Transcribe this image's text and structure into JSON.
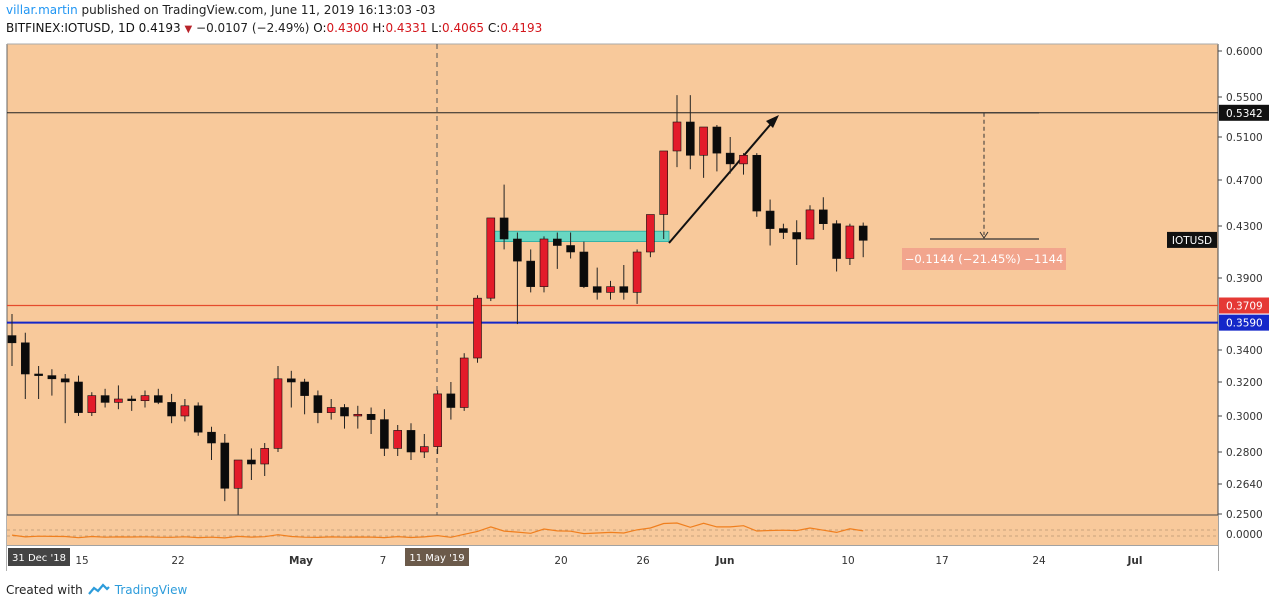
{
  "header": {
    "author": "villar.martin",
    "published_text": " published on TradingView.com, June 11, 2019 16:13:03 -03",
    "symbol": "BITFINEX:IOTUSD, 1D",
    "last": "0.4193",
    "change": "−0.0107 (−2.49%)",
    "o_label": "O:",
    "o": "0.4300",
    "h_label": "H:",
    "h": "0.4331",
    "l_label": "L:",
    "l": "0.4065",
    "c_label": "C:",
    "c": "0.4193"
  },
  "footer": {
    "created_with": "Created with",
    "brand": "TradingView"
  },
  "colors": {
    "background": "#f8c99b",
    "bull": "#e31b2a",
    "bear": "#0b0b0b",
    "support_red": "#e54b2c",
    "support_blue": "#1427c9",
    "zone": "#4fd9c9",
    "measure": "#f2a58d",
    "oscillator": "#f07f1e"
  },
  "chart_data": {
    "type": "candlestick",
    "symbol_tag": "IOTUSD",
    "y_ticks": [
      "0.6000",
      "0.5500",
      "0.5100",
      "0.4700",
      "0.4300",
      "0.3900",
      "0.3400",
      "0.3200",
      "0.3000",
      "0.2800",
      "0.2640",
      "0.2500"
    ],
    "x_ticks": [
      "15",
      "22",
      "May",
      "7",
      "20",
      "26",
      "Jun",
      "10",
      "17",
      "24",
      "Jul"
    ],
    "start_label": "31 Dec '18",
    "cursor_label": "11 May '19",
    "price_tags": {
      "top_line": "0.5342",
      "red_line": "0.3709",
      "blue_line": "0.3590"
    },
    "levels": {
      "top_line": 0.5342,
      "red_line": 0.3709,
      "blue_line": 0.359
    },
    "measure_label": "−0.1144 (−21.45%) −1144",
    "measure_from": 0.5342,
    "measure_to": 0.42,
    "zone": {
      "top": 0.426,
      "bottom": 0.418
    },
    "oscillator_tick": "0.0000",
    "candles": [
      [
        0.35,
        0.365,
        0.33,
        0.345
      ],
      [
        0.345,
        0.352,
        0.31,
        0.325
      ],
      [
        0.325,
        0.33,
        0.31,
        0.324
      ],
      [
        0.324,
        0.328,
        0.312,
        0.322
      ],
      [
        0.322,
        0.325,
        0.296,
        0.32
      ],
      [
        0.32,
        0.324,
        0.3,
        0.302
      ],
      [
        0.302,
        0.314,
        0.3,
        0.312
      ],
      [
        0.312,
        0.316,
        0.305,
        0.308
      ],
      [
        0.308,
        0.318,
        0.304,
        0.31
      ],
      [
        0.31,
        0.312,
        0.303,
        0.309
      ],
      [
        0.309,
        0.315,
        0.305,
        0.312
      ],
      [
        0.312,
        0.316,
        0.307,
        0.308
      ],
      [
        0.308,
        0.313,
        0.296,
        0.3
      ],
      [
        0.3,
        0.31,
        0.297,
        0.306
      ],
      [
        0.306,
        0.308,
        0.289,
        0.291
      ],
      [
        0.291,
        0.294,
        0.276,
        0.285
      ],
      [
        0.285,
        0.29,
        0.256,
        0.262
      ],
      [
        0.262,
        0.276,
        0.248,
        0.276
      ],
      [
        0.276,
        0.282,
        0.266,
        0.274
      ],
      [
        0.274,
        0.285,
        0.268,
        0.282
      ],
      [
        0.282,
        0.33,
        0.28,
        0.322
      ],
      [
        0.322,
        0.327,
        0.305,
        0.32
      ],
      [
        0.32,
        0.322,
        0.301,
        0.312
      ],
      [
        0.312,
        0.315,
        0.296,
        0.302
      ],
      [
        0.302,
        0.31,
        0.298,
        0.305
      ],
      [
        0.305,
        0.307,
        0.293,
        0.3
      ],
      [
        0.3,
        0.306,
        0.293,
        0.301
      ],
      [
        0.301,
        0.305,
        0.29,
        0.298
      ],
      [
        0.298,
        0.304,
        0.278,
        0.282
      ],
      [
        0.282,
        0.295,
        0.278,
        0.292
      ],
      [
        0.292,
        0.296,
        0.276,
        0.28
      ],
      [
        0.28,
        0.29,
        0.277,
        0.283
      ],
      [
        0.283,
        0.315,
        0.279,
        0.313
      ],
      [
        0.313,
        0.32,
        0.298,
        0.305
      ],
      [
        0.305,
        0.338,
        0.303,
        0.335
      ],
      [
        0.335,
        0.378,
        0.332,
        0.376
      ],
      [
        0.376,
        0.437,
        0.374,
        0.437
      ],
      [
        0.437,
        0.466,
        0.412,
        0.42
      ],
      [
        0.42,
        0.425,
        0.358,
        0.403
      ],
      [
        0.403,
        0.412,
        0.38,
        0.384
      ],
      [
        0.384,
        0.422,
        0.38,
        0.42
      ],
      [
        0.42,
        0.425,
        0.397,
        0.415
      ],
      [
        0.415,
        0.425,
        0.405,
        0.41
      ],
      [
        0.41,
        0.418,
        0.383,
        0.384
      ],
      [
        0.384,
        0.398,
        0.375,
        0.38
      ],
      [
        0.38,
        0.388,
        0.375,
        0.384
      ],
      [
        0.384,
        0.4,
        0.375,
        0.38
      ],
      [
        0.38,
        0.412,
        0.372,
        0.41
      ],
      [
        0.41,
        0.44,
        0.406,
        0.44
      ],
      [
        0.44,
        0.497,
        0.42,
        0.497
      ],
      [
        0.497,
        0.552,
        0.482,
        0.525
      ],
      [
        0.525,
        0.552,
        0.48,
        0.493
      ],
      [
        0.493,
        0.518,
        0.472,
        0.52
      ],
      [
        0.52,
        0.522,
        0.478,
        0.495
      ],
      [
        0.495,
        0.51,
        0.476,
        0.485
      ],
      [
        0.485,
        0.495,
        0.475,
        0.493
      ],
      [
        0.493,
        0.495,
        0.438,
        0.443
      ],
      [
        0.443,
        0.453,
        0.415,
        0.428
      ],
      [
        0.428,
        0.432,
        0.42,
        0.425
      ],
      [
        0.425,
        0.435,
        0.4,
        0.42
      ],
      [
        0.42,
        0.448,
        0.42,
        0.444
      ],
      [
        0.444,
        0.455,
        0.427,
        0.432
      ],
      [
        0.432,
        0.435,
        0.395,
        0.405
      ],
      [
        0.405,
        0.432,
        0.4,
        0.43
      ],
      [
        0.43,
        0.433,
        0.406,
        0.419
      ]
    ]
  }
}
